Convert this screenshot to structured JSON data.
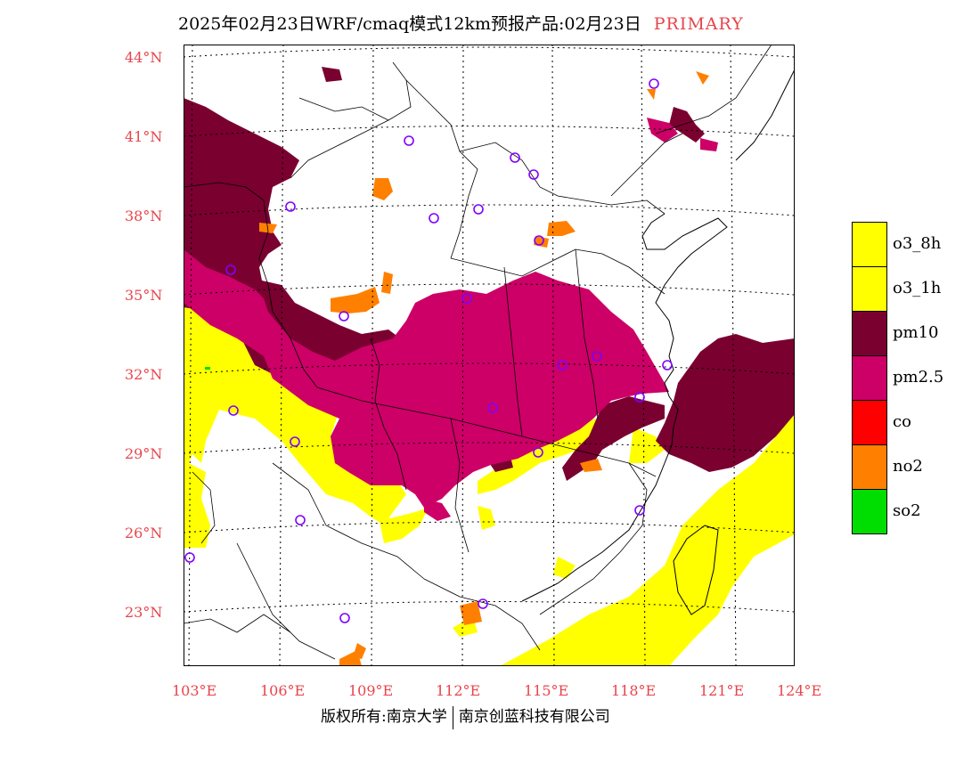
{
  "header": {
    "title": "2025年02月23日WRF/cmaq模式12km预报产品:02月23日",
    "tag": "PRIMARY"
  },
  "axes": {
    "lat_labels": [
      "44°N",
      "41°N",
      "38°N",
      "35°N",
      "32°N",
      "29°N",
      "26°N",
      "23°N"
    ],
    "lon_labels": [
      "103°E",
      "106°E",
      "109°E",
      "112°E",
      "115°E",
      "118°E",
      "121°E",
      "124°E"
    ]
  },
  "legend": {
    "items": [
      {
        "label": "o3_8h",
        "color": "#ffff00"
      },
      {
        "label": "o3_1h",
        "color": "#ffff00"
      },
      {
        "label": "pm10",
        "color": "#7a0030"
      },
      {
        "label": "pm2.5",
        "color": "#cc0066"
      },
      {
        "label": "co",
        "color": "#ff0000"
      },
      {
        "label": "no2",
        "color": "#ff8000"
      },
      {
        "label": "so2",
        "color": "#00dd00"
      }
    ]
  },
  "colors": {
    "pm10": "#7a0030",
    "pm25": "#cc0066",
    "o3": "#ffff00",
    "no2": "#ff8000",
    "station": "#8000ff",
    "label": "#e8444b"
  },
  "footer": {
    "copyright": "版权所有:南京大学",
    "company": "南京创蓝科技有限公司"
  }
}
